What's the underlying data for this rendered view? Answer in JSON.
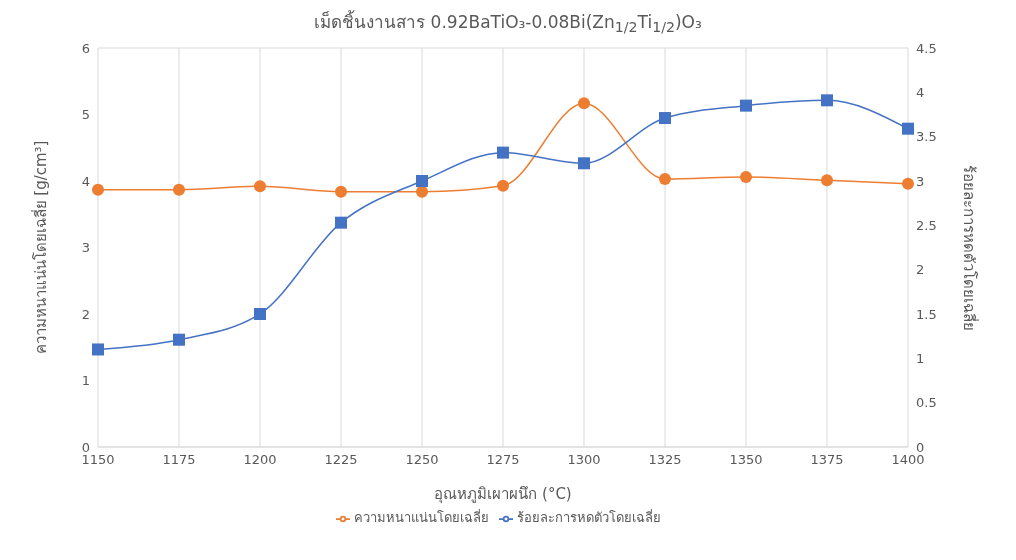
{
  "chart_data": {
    "type": "line",
    "title": "เม็ดชิ้นงานสาร 0.92BaTiO₃-0.08Bi(Zn$_{1/2}$Ti$_{1/2}$)O₃",
    "xlabel": "อุณหภูมิเผาผนึก (°C)",
    "ylabel": "ความหนาแน่นโดยเฉลี่ย [g/cm³]",
    "y2label": "ร้อยละการหดตัวโดยเฉลี่ย",
    "categories": [
      "1150",
      "1175",
      "1200",
      "1225",
      "1250",
      "1275",
      "1300",
      "1325",
      "1350",
      "1375",
      "1400"
    ],
    "series": [
      {
        "name": "ความหนาแน่นโดยเฉลี่ย",
        "color": "#ed7d31",
        "marker": "circle",
        "values": [
          3.87,
          3.87,
          3.92,
          3.84,
          3.84,
          3.93,
          5.17,
          4.03,
          4.06,
          4.01,
          3.96
        ]
      },
      {
        "name": "ร้อยละการหดตัวโดยเฉลี่ย",
        "color": "#4472c4",
        "marker": "square",
        "axis": "y2",
        "values": [
          1.1,
          1.21,
          1.5,
          2.53,
          3.0,
          3.32,
          3.2,
          3.71,
          3.85,
          3.91,
          3.59
        ]
      }
    ],
    "ylim": [
      0,
      6
    ],
    "yticks": [
      0,
      1,
      2,
      3,
      4,
      5,
      6
    ],
    "y2lim": [
      0,
      4.5
    ],
    "y2ticks": [
      0,
      0.5,
      1,
      1.5,
      2,
      2.5,
      3,
      3.5,
      4,
      4.5
    ],
    "grid": true,
    "legend": "bottom"
  }
}
